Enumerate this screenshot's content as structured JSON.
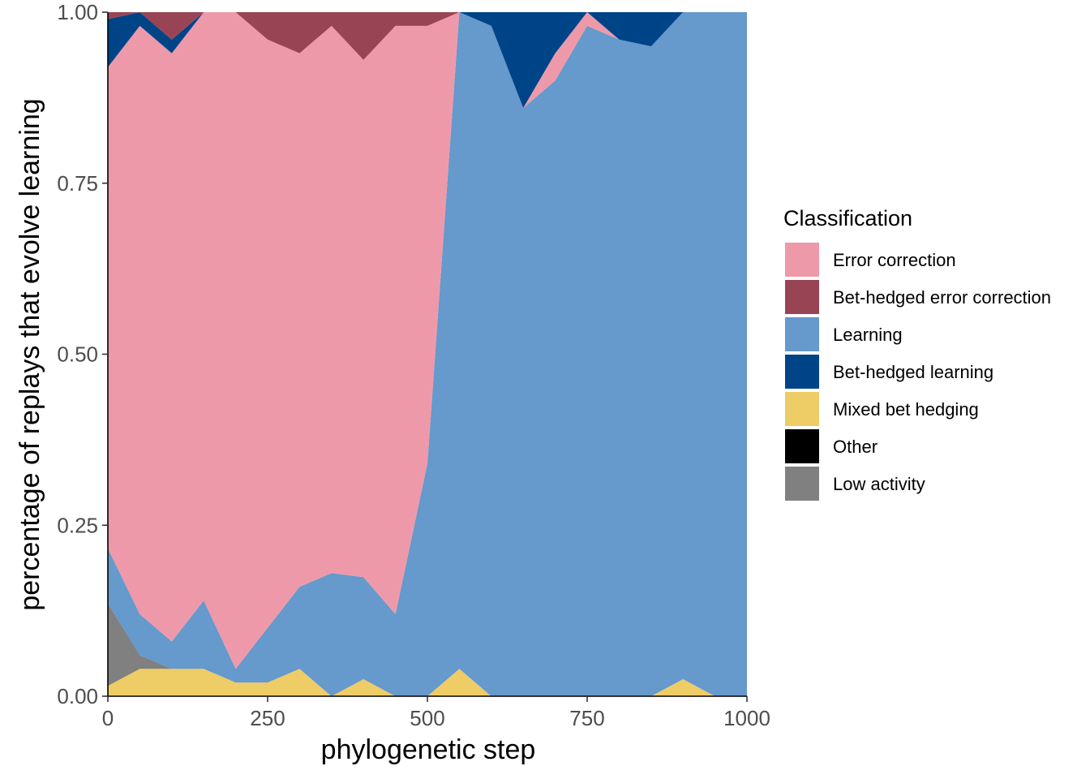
{
  "chart_data": {
    "type": "area",
    "stacked": true,
    "normalized": true,
    "title": "",
    "xlabel": "phylogenetic step",
    "ylabel": "percentage of replays that evolve learning",
    "xlim": [
      0,
      1000
    ],
    "ylim": [
      0,
      1
    ],
    "x_ticks": [
      0,
      250,
      500,
      750,
      1000
    ],
    "y_ticks": [
      0.0,
      0.25,
      0.5,
      0.75,
      1.0
    ],
    "x_tick_labels": [
      "0",
      "250",
      "500",
      "750",
      "1000"
    ],
    "y_tick_labels": [
      "0.00",
      "0.25",
      "0.50",
      "0.75",
      "1.00"
    ],
    "grid": false,
    "legend_position": "right",
    "legend_title": "Classification",
    "x": [
      0,
      50,
      100,
      150,
      200,
      250,
      300,
      350,
      400,
      450,
      500,
      550,
      600,
      650,
      700,
      750,
      800,
      850,
      900,
      950,
      1000
    ],
    "stack_order": [
      "Mixed bet hedging",
      "Low activity",
      "Other",
      "Learning",
      "Error correction",
      "Bet-hedged learning",
      "Bet-hedged error correction"
    ],
    "series": [
      {
        "name": "Error correction",
        "color": "#EE99AA",
        "values": [
          0.7,
          0.86,
          0.86,
          0.86,
          0.96,
          0.86,
          0.78,
          0.8,
          0.76,
          0.86,
          0.64,
          0.0,
          0.0,
          0.0,
          0.04,
          0.02,
          0.0,
          0.0,
          0.0,
          0.0,
          0.0
        ]
      },
      {
        "name": "Bet-hedged error correction",
        "color": "#994455",
        "values": [
          0.01,
          0.0,
          0.04,
          0.0,
          0.0,
          0.04,
          0.06,
          0.02,
          0.07,
          0.02,
          0.02,
          0.0,
          0.0,
          0.0,
          0.0,
          0.0,
          0.0,
          0.0,
          0.0,
          0.0,
          0.0
        ]
      },
      {
        "name": "Learning",
        "color": "#6699CC",
        "values": [
          0.08,
          0.06,
          0.04,
          0.1,
          0.02,
          0.08,
          0.12,
          0.18,
          0.15,
          0.12,
          0.34,
          0.96,
          0.98,
          0.86,
          0.9,
          0.98,
          0.96,
          0.95,
          0.98,
          1.0,
          1.0
        ]
      },
      {
        "name": "Bet-hedged learning",
        "color": "#004488",
        "values": [
          0.07,
          0.02,
          0.02,
          0.0,
          0.0,
          0.0,
          0.0,
          0.0,
          0.0,
          0.0,
          0.0,
          0.0,
          0.02,
          0.14,
          0.06,
          0.0,
          0.04,
          0.05,
          0.0,
          0.0,
          0.0
        ]
      },
      {
        "name": "Mixed bet hedging",
        "color": "#EECC66",
        "values": [
          0.015,
          0.04,
          0.04,
          0.04,
          0.02,
          0.02,
          0.04,
          0.0,
          0.025,
          0.0,
          0.0,
          0.04,
          0.0,
          0.0,
          0.0,
          0.0,
          0.0,
          0.0,
          0.025,
          0.0,
          0.0
        ]
      },
      {
        "name": "Other",
        "color": "#000000",
        "values": [
          0,
          0,
          0,
          0,
          0,
          0,
          0,
          0,
          0,
          0,
          0,
          0,
          0,
          0,
          0,
          0,
          0,
          0,
          0,
          0,
          0
        ]
      },
      {
        "name": "Low activity",
        "color": "#808080",
        "values": [
          0.12,
          0.02,
          0.0,
          0.0,
          0.0,
          0.0,
          0.0,
          0.0,
          0.0,
          0.0,
          0.0,
          0.0,
          0.0,
          0.0,
          0.0,
          0.0,
          0.0,
          0.0,
          0.0,
          0.0,
          0.0
        ]
      }
    ]
  }
}
